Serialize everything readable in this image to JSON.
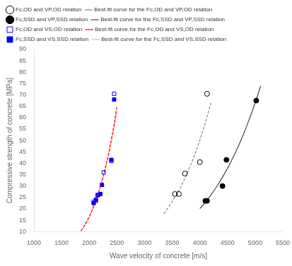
{
  "chart_data": {
    "type": "scatter",
    "xlabel": "Wave velocity of concrete [m/s]",
    "ylabel": "Compressive strength of concrete [MPa]",
    "xlim": [
      1000,
      5500
    ],
    "ylim": [
      10,
      90
    ],
    "xticks": [
      1000,
      1500,
      2000,
      2500,
      3000,
      3500,
      4000,
      4500,
      5000,
      5500
    ],
    "yticks": [
      10,
      15,
      20,
      25,
      30,
      35,
      40,
      45,
      50,
      55,
      60,
      65,
      70,
      75,
      80,
      85,
      90
    ],
    "grid": false,
    "legend": "upper left",
    "series": [
      {
        "name": "Fc,OD and VP,OD relation",
        "type": "scatter",
        "marker": "circle-open",
        "color": "#000000",
        "x": [
          3550,
          3620,
          3730,
          4000,
          4130
        ],
        "values": [
          26.5,
          26.5,
          35.5,
          40.5,
          70.5
        ]
      },
      {
        "name": "Best-fit curve for the Fc,OD and VP,OD relation",
        "type": "line",
        "line_style": "dashed",
        "color": "#888888",
        "x": [
          3350,
          3400,
          3450,
          3500,
          3550,
          3600,
          3650,
          3700,
          3750,
          3800,
          3850,
          3900,
          3950,
          4000,
          4050,
          4100,
          4150,
          4200
        ],
        "values": [
          17.92,
          19.53,
          21.25,
          23.1,
          25.08,
          27.2,
          29.47,
          31.89,
          34.47,
          37.22,
          40.15,
          43.27,
          46.59,
          50.12,
          53.86,
          57.83,
          62.05,
          66.51
        ]
      },
      {
        "name": "Fc,SSD and VP,SSD relation",
        "type": "scatter",
        "marker": "circle",
        "color": "#000000",
        "x": [
          4100,
          4130,
          4410,
          4480,
          5020
        ],
        "values": [
          23.5,
          23.5,
          30.0,
          41.5,
          67.5
        ]
      },
      {
        "name": "Best-fit curve for the Fc,SSD and VP,SSD relation",
        "type": "line",
        "line_style": "solid",
        "color": "#444444",
        "x": [
          4000,
          4050,
          4100,
          4150,
          4200,
          4250,
          4300,
          4350,
          4400,
          4450,
          4500,
          4550,
          4600,
          4650,
          4700,
          4750,
          4800,
          4850,
          4900,
          4950,
          5000,
          5050,
          5100
        ],
        "values": [
          20.07,
          21.45,
          22.91,
          24.46,
          26.08,
          27.79,
          29.59,
          31.49,
          33.48,
          35.58,
          37.78,
          40.09,
          42.52,
          45.06,
          47.72,
          50.52,
          53.44,
          56.5,
          59.7,
          63.04,
          66.54,
          70.19,
          74.01
        ]
      },
      {
        "name": "Fc,OD and VS,OD relation",
        "type": "scatter",
        "marker": "square-open",
        "color": "#0000ff",
        "x": [
          2080,
          2120,
          2150,
          2200,
          2260,
          2400,
          2450
        ],
        "values": [
          23.0,
          23.5,
          26.0,
          26.5,
          36.0,
          41.0,
          70.5
        ]
      },
      {
        "name": "Best-fit curve for the Fc,OD and VS,OD relation",
        "type": "line",
        "line_style": "dashed",
        "color": "#ff0000",
        "x": [
          1850,
          1900,
          1950,
          2000,
          2050,
          2100,
          2150,
          2200,
          2250,
          2300,
          2350,
          2400,
          2450,
          2500
        ],
        "values": [
          10.29,
          12.12,
          14.2,
          16.58,
          19.28,
          22.34,
          25.8,
          29.69,
          34.06,
          38.96,
          44.44,
          50.54,
          57.33,
          64.86
        ]
      },
      {
        "name": "Fc,SSD and VS,SSD relation",
        "type": "scatter",
        "marker": "square",
        "color": "#0000ff",
        "x": [
          2080,
          2120,
          2160,
          2200,
          2230,
          2400,
          2450
        ],
        "values": [
          22.5,
          24.0,
          26.0,
          26.5,
          30.5,
          41.5,
          68.0
        ]
      },
      {
        "name": "Best-fit curve for the Fc,SSD and VS,SSD relation",
        "type": "line",
        "line_style": "solid",
        "color": "#ffaaaa",
        "x": [
          1850,
          1900,
          1950,
          2000,
          2050,
          2100,
          2150,
          2200,
          2250,
          2300,
          2350,
          2400,
          2450,
          2500
        ],
        "values": [
          10.21,
          12.0,
          14.05,
          16.37,
          19.01,
          21.99,
          25.36,
          29.14,
          33.38,
          38.13,
          43.43,
          49.33,
          55.88,
          63.15
        ]
      }
    ]
  }
}
